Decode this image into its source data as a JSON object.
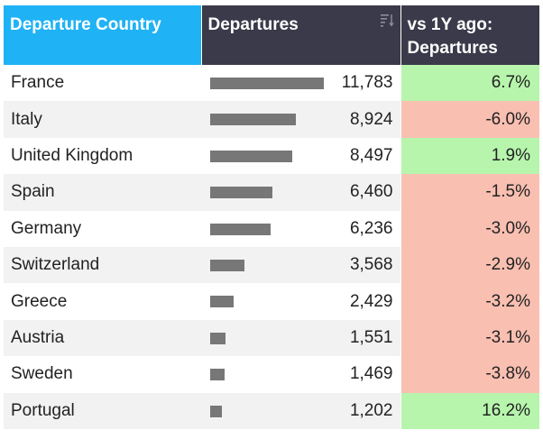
{
  "table": {
    "headers": {
      "country": "Departure Country",
      "departures": "Departures",
      "yoy_line1": "vs 1Y ago:",
      "yoy_line2": "Departures"
    },
    "max_departures": 11783,
    "colors": {
      "country_header_bg": "#1fb2f5",
      "header_bg": "#3a3a4a",
      "bar": "#777777",
      "positive_bg": "#b7f5ad",
      "negative_bg": "#f9bfb1"
    },
    "rows": [
      {
        "country": "France",
        "departures": 11783,
        "departures_label": "11,783",
        "change": "6.7%",
        "trend": "pos"
      },
      {
        "country": "Italy",
        "departures": 8924,
        "departures_label": "8,924",
        "change": "-6.0%",
        "trend": "neg"
      },
      {
        "country": "United Kingdom",
        "departures": 8497,
        "departures_label": "8,497",
        "change": "1.9%",
        "trend": "pos"
      },
      {
        "country": "Spain",
        "departures": 6460,
        "departures_label": "6,460",
        "change": "-1.5%",
        "trend": "neg"
      },
      {
        "country": "Germany",
        "departures": 6236,
        "departures_label": "6,236",
        "change": "-3.0%",
        "trend": "neg"
      },
      {
        "country": "Switzerland",
        "departures": 3568,
        "departures_label": "3,568",
        "change": "-2.9%",
        "trend": "neg"
      },
      {
        "country": "Greece",
        "departures": 2429,
        "departures_label": "2,429",
        "change": "-3.2%",
        "trend": "neg"
      },
      {
        "country": "Austria",
        "departures": 1551,
        "departures_label": "1,551",
        "change": "-3.1%",
        "trend": "neg"
      },
      {
        "country": "Sweden",
        "departures": 1469,
        "departures_label": "1,469",
        "change": "-3.8%",
        "trend": "neg"
      },
      {
        "country": "Portugal",
        "departures": 1202,
        "departures_label": "1,202",
        "change": "16.2%",
        "trend": "pos"
      }
    ]
  }
}
